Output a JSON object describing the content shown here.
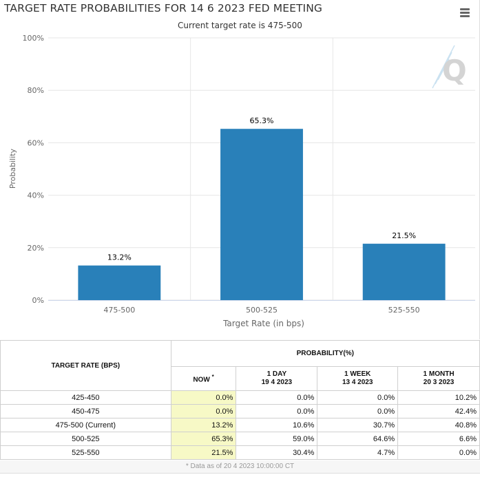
{
  "chart_data": {
    "type": "bar",
    "title": "TARGET RATE PROBABILITIES FOR 14 6 2023 FED MEETING",
    "subtitle": "Current target rate is 475-500",
    "xlabel": "Target Rate (in bps)",
    "ylabel": "Probability",
    "categories": [
      "475-500",
      "500-525",
      "525-550"
    ],
    "values": [
      13.2,
      65.3,
      21.5
    ],
    "value_labels": [
      "13.2%",
      "65.3%",
      "21.5%"
    ],
    "ylim": [
      0,
      100
    ],
    "yticks": [
      0,
      20,
      40,
      60,
      80,
      100
    ],
    "ytick_labels": [
      "0%",
      "20%",
      "40%",
      "60%",
      "80%",
      "100%"
    ],
    "bar_color": "#2980b9",
    "grid": true
  },
  "menu": {
    "icon": "hamburger-menu-icon"
  },
  "watermark": {
    "letter": "Q",
    "icon": "quikstrike-logo-icon"
  },
  "table": {
    "col_rate_header": "TARGET RATE (BPS)",
    "col_prob_header": "PROBABILITY(%)",
    "now_label": "NOW",
    "now_mark": "*",
    "sub_headers": [
      {
        "line1": "1 DAY",
        "line2": "19 4 2023"
      },
      {
        "line1": "1 WEEK",
        "line2": "13 4 2023"
      },
      {
        "line1": "1 MONTH",
        "line2": "20 3 2023"
      }
    ],
    "rows": [
      {
        "rate": "425-450",
        "now": "0.0%",
        "day": "0.0%",
        "week": "0.0%",
        "month": "10.2%"
      },
      {
        "rate": "450-475",
        "now": "0.0%",
        "day": "0.0%",
        "week": "0.0%",
        "month": "42.4%"
      },
      {
        "rate": "475-500 (Current)",
        "now": "13.2%",
        "day": "10.6%",
        "week": "30.7%",
        "month": "40.8%"
      },
      {
        "rate": "500-525",
        "now": "65.3%",
        "day": "59.0%",
        "week": "64.6%",
        "month": "6.6%"
      },
      {
        "rate": "525-550",
        "now": "21.5%",
        "day": "30.4%",
        "week": "4.7%",
        "month": "0.0%"
      }
    ],
    "now_highlight_color": "#f7f9c6"
  },
  "footer": {
    "text": "* Data as of 20 4 2023 10:00:00 CT"
  }
}
